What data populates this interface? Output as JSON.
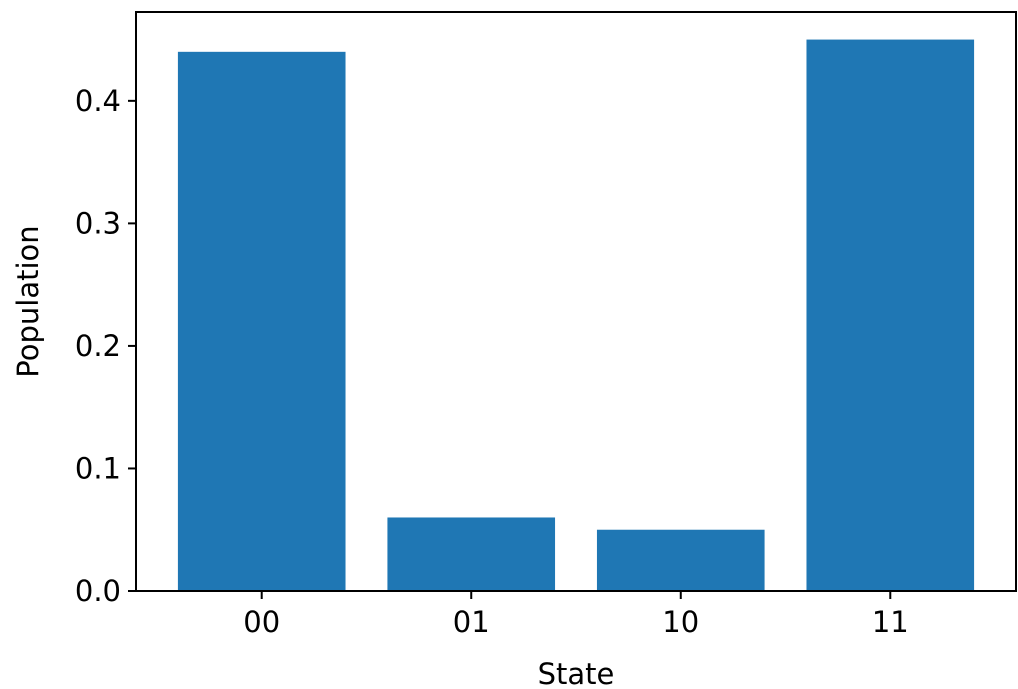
{
  "chart_data": {
    "type": "bar",
    "categories": [
      "00",
      "01",
      "10",
      "11"
    ],
    "values": [
      0.44,
      0.06,
      0.05,
      0.45
    ],
    "xlabel": "State",
    "ylabel": "Population",
    "ylim": [
      0.0,
      0.4725
    ],
    "yticks": [
      0.0,
      0.1,
      0.2,
      0.3,
      0.4
    ],
    "ytick_labels": [
      "0.0",
      "0.1",
      "0.2",
      "0.3",
      "0.4"
    ],
    "grid": false,
    "bar_color": "#1f77b4"
  }
}
